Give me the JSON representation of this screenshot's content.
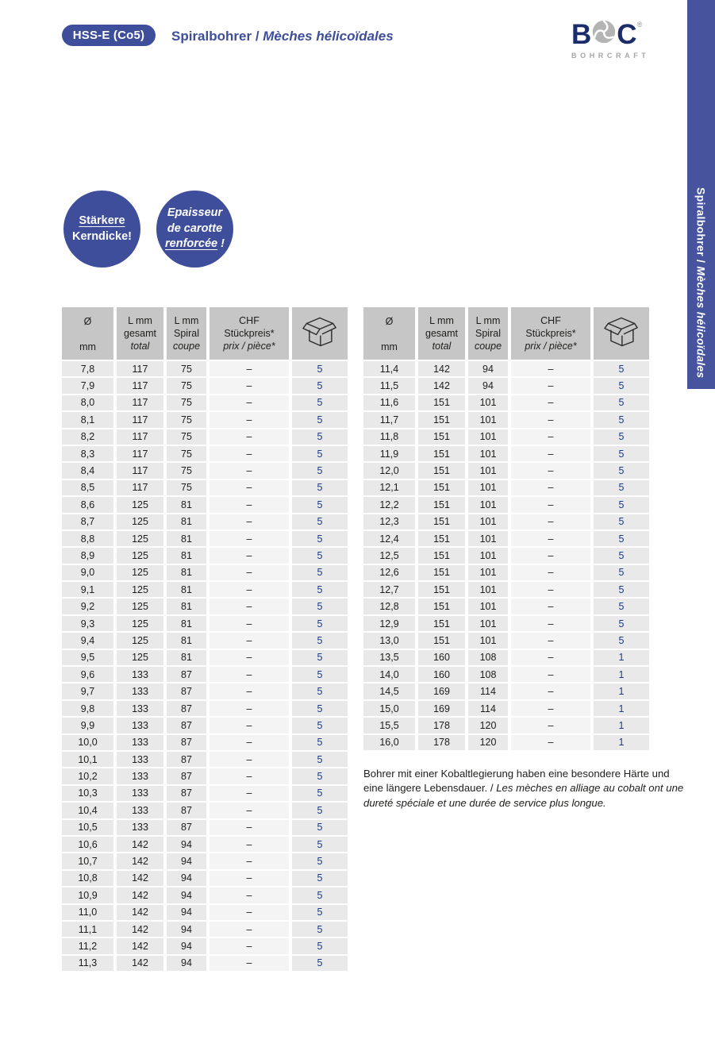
{
  "header": {
    "badge": "HSS-E (Co5)",
    "title_de": "Spiralbohrer",
    "title_sep": " / ",
    "title_fr": "Mèches hélicoïdales"
  },
  "logo": {
    "letter_b": "B",
    "letter_c": "C",
    "registered": "®",
    "subtext": "BOHRCRAFT"
  },
  "side_tab": {
    "text_de": "Spiralbohrer",
    "sep": " / ",
    "text_fr": "Mèches hélicoïdales"
  },
  "promo_circles": {
    "circle1": {
      "line1": "Stärkere",
      "line2": "Kerndicke!"
    },
    "circle2": {
      "line1": "Epaisseur",
      "line2": "de carotte",
      "line3_underlined": "renforcée",
      "line3_rest": " !"
    }
  },
  "table_header": {
    "col_diameter": [
      "Ø",
      "mm"
    ],
    "col_total": [
      "L mm",
      "gesamt",
      "total"
    ],
    "col_spiral": [
      "L mm",
      "Spiral",
      "coupe"
    ],
    "col_price": [
      "CHF",
      "Stückpreis*",
      "prix / pièce*"
    ],
    "col_package_icon": "box-icon"
  },
  "tables": {
    "left_rows": [
      [
        "7,8",
        "117",
        "75",
        "–",
        "5"
      ],
      [
        "7,9",
        "117",
        "75",
        "–",
        "5"
      ],
      [
        "8,0",
        "117",
        "75",
        "–",
        "5"
      ],
      [
        "8,1",
        "117",
        "75",
        "–",
        "5"
      ],
      [
        "8,2",
        "117",
        "75",
        "–",
        "5"
      ],
      [
        "8,3",
        "117",
        "75",
        "–",
        "5"
      ],
      [
        "8,4",
        "117",
        "75",
        "–",
        "5"
      ],
      [
        "8,5",
        "117",
        "75",
        "–",
        "5"
      ],
      [
        "8,6",
        "125",
        "81",
        "–",
        "5"
      ],
      [
        "8,7",
        "125",
        "81",
        "–",
        "5"
      ],
      [
        "8,8",
        "125",
        "81",
        "–",
        "5"
      ],
      [
        "8,9",
        "125",
        "81",
        "–",
        "5"
      ],
      [
        "9,0",
        "125",
        "81",
        "–",
        "5"
      ],
      [
        "9,1",
        "125",
        "81",
        "–",
        "5"
      ],
      [
        "9,2",
        "125",
        "81",
        "–",
        "5"
      ],
      [
        "9,3",
        "125",
        "81",
        "–",
        "5"
      ],
      [
        "9,4",
        "125",
        "81",
        "–",
        "5"
      ],
      [
        "9,5",
        "125",
        "81",
        "–",
        "5"
      ],
      [
        "9,6",
        "133",
        "87",
        "–",
        "5"
      ],
      [
        "9,7",
        "133",
        "87",
        "–",
        "5"
      ],
      [
        "9,8",
        "133",
        "87",
        "–",
        "5"
      ],
      [
        "9,9",
        "133",
        "87",
        "–",
        "5"
      ],
      [
        "10,0",
        "133",
        "87",
        "–",
        "5"
      ],
      [
        "10,1",
        "133",
        "87",
        "–",
        "5"
      ],
      [
        "10,2",
        "133",
        "87",
        "–",
        "5"
      ],
      [
        "10,3",
        "133",
        "87",
        "–",
        "5"
      ],
      [
        "10,4",
        "133",
        "87",
        "–",
        "5"
      ],
      [
        "10,5",
        "133",
        "87",
        "–",
        "5"
      ],
      [
        "10,6",
        "142",
        "94",
        "–",
        "5"
      ],
      [
        "10,7",
        "142",
        "94",
        "–",
        "5"
      ],
      [
        "10,8",
        "142",
        "94",
        "–",
        "5"
      ],
      [
        "10,9",
        "142",
        "94",
        "–",
        "5"
      ],
      [
        "11,0",
        "142",
        "94",
        "–",
        "5"
      ],
      [
        "11,1",
        "142",
        "94",
        "–",
        "5"
      ],
      [
        "11,2",
        "142",
        "94",
        "–",
        "5"
      ],
      [
        "11,3",
        "142",
        "94",
        "–",
        "5"
      ]
    ],
    "right_rows": [
      [
        "11,4",
        "142",
        "94",
        "–",
        "5"
      ],
      [
        "11,5",
        "142",
        "94",
        "–",
        "5"
      ],
      [
        "11,6",
        "151",
        "101",
        "–",
        "5"
      ],
      [
        "11,7",
        "151",
        "101",
        "–",
        "5"
      ],
      [
        "11,8",
        "151",
        "101",
        "–",
        "5"
      ],
      [
        "11,9",
        "151",
        "101",
        "–",
        "5"
      ],
      [
        "12,0",
        "151",
        "101",
        "–",
        "5"
      ],
      [
        "12,1",
        "151",
        "101",
        "–",
        "5"
      ],
      [
        "12,2",
        "151",
        "101",
        "–",
        "5"
      ],
      [
        "12,3",
        "151",
        "101",
        "–",
        "5"
      ],
      [
        "12,4",
        "151",
        "101",
        "–",
        "5"
      ],
      [
        "12,5",
        "151",
        "101",
        "–",
        "5"
      ],
      [
        "12,6",
        "151",
        "101",
        "–",
        "5"
      ],
      [
        "12,7",
        "151",
        "101",
        "–",
        "5"
      ],
      [
        "12,8",
        "151",
        "101",
        "–",
        "5"
      ],
      [
        "12,9",
        "151",
        "101",
        "–",
        "5"
      ],
      [
        "13,0",
        "151",
        "101",
        "–",
        "5"
      ],
      [
        "13,5",
        "160",
        "108",
        "–",
        "1"
      ],
      [
        "14,0",
        "160",
        "108",
        "–",
        "1"
      ],
      [
        "14,5",
        "169",
        "114",
        "–",
        "1"
      ],
      [
        "15,0",
        "169",
        "114",
        "–",
        "1"
      ],
      [
        "15,5",
        "178",
        "120",
        "–",
        "1"
      ],
      [
        "16,0",
        "178",
        "120",
        "–",
        "1"
      ]
    ]
  },
  "note": {
    "text_de": "Bohrer mit einer Kobaltlegierung haben eine besondere Härte und eine längere Lebensdauer.",
    "sep": " / ",
    "text_fr": "Les mèches en alliage au cobalt ont une dureté spéciale et une durée de service plus longue."
  },
  "colors": {
    "accent_blue": "#3e4e9b",
    "side_band_blue": "#46539d",
    "header_cell_gray": "#c6c6c6",
    "data_cell_gray": "#e9e9e9",
    "price_cell_gray": "#f4f4f4",
    "text_dark": "#1d1d1b",
    "package_count_blue": "#1c3a8a",
    "logo_navy": "#1b2c6b",
    "logo_gray": "#a6a6a6"
  }
}
